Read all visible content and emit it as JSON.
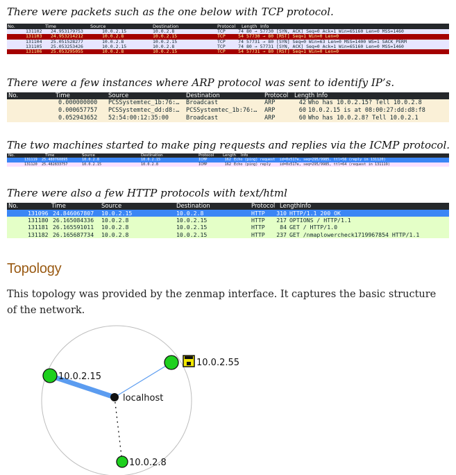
{
  "captions": {
    "tcp": "There were packets such as the one below with TCP protocol.",
    "arp": "There were a few instances where ARP protocol was sent to identify IP’s.",
    "icmp": "The two machines started to make ping requests and replies via the ICMP protocol.",
    "http": "There were also a few HTTP protocols with text/html"
  },
  "tcp_table": {
    "headers": [
      "No.",
      "Time",
      "Source",
      "Destination",
      "Protocol",
      "Length",
      "Info"
    ],
    "rows": [
      {
        "no": "131102",
        "time": "24.953179753",
        "src": "10.0.2.15",
        "dst": "10.0.2.8",
        "proto": "TCP",
        "len": "74",
        "info": "80 → 57730 [SYN, ACK] Seq=0 Ack=1 Win=65160 Len=0 MSS=1460",
        "style": "normal"
      },
      {
        "no": "131103",
        "time": "24.953214212",
        "src": "10.0.2.8",
        "dst": "10.0.2.15",
        "proto": "TCP",
        "len": "54",
        "info": "57730 → 80 [RST] Seq=1 Win=0 Len=0",
        "style": "rst"
      },
      {
        "no": "131104",
        "time": "25.051528277",
        "src": "10.0.2.8",
        "dst": "10.0.2.15",
        "proto": "TCP",
        "len": "74",
        "info": "57731 → 80 [SYN] Seq=0 Win=63 Len=0 MSS=1400 WS=1 SACK_PERM",
        "style": "normal"
      },
      {
        "no": "131105",
        "time": "25.053253426",
        "src": "10.0.2.15",
        "dst": "10.0.2.8",
        "proto": "TCP",
        "len": "74",
        "info": "80 → 57731 [SYN, ACK] Seq=0 Ack=1 Win=65160 Len=0 MSS=1460",
        "style": "normal"
      },
      {
        "no": "131106",
        "time": "25.053295055",
        "src": "10.0.2.8",
        "dst": "10.0.2.15",
        "proto": "TCP",
        "len": "54",
        "info": "57731 → 80 [RST] Seq=1 Win=0 Len=0",
        "style": "rst"
      }
    ]
  },
  "arp_table": {
    "headers": [
      "No.",
      "Time",
      "Source",
      "Destination",
      "Protocol",
      "Length",
      "Info"
    ],
    "rows": [
      {
        "no": "1",
        "time": "0.000000000",
        "src": "PCSSystemtec_1b:76:…",
        "dst": "Broadcast",
        "proto": "ARP",
        "len": "42",
        "info": "Who has 10.0.2.15? Tell 10.0.2.8"
      },
      {
        "no": "2",
        "time": "0.000657757",
        "src": "PCSSystemtec_dd:d8:…",
        "dst": "PCSSystemtec_1b:76:…",
        "proto": "ARP",
        "len": "60",
        "info": "10.0.2.15 is at 08:00:27:dd:d8:f8"
      },
      {
        "no": "4",
        "time": "0.052943652",
        "src": "52:54:00:12:35:00",
        "dst": "Broadcast",
        "proto": "ARP",
        "len": "60",
        "info": "Who has 10.0.2.8? Tell 10.0.2.1"
      }
    ]
  },
  "icmp_table": {
    "headers": [
      "No.",
      "Time",
      "Source",
      "Destination",
      "Protocol",
      "Length",
      "Info"
    ],
    "rows": [
      {
        "no": "131119",
        "time": "25.480760895",
        "src": "10.0.2.8",
        "dst": "10.0.2.15",
        "proto": "ICMP",
        "len": "162",
        "info": "Echo (ping) request  id=0x517e, seq=295/9985, ttl=56 (reply in 131120)",
        "style": "selected"
      },
      {
        "no": "131120",
        "time": "25.482833757",
        "src": "10.0.2.15",
        "dst": "10.0.2.8",
        "proto": "ICMP",
        "len": "162",
        "info": "Echo (ping) reply    id=0x517e, seq=295/9985, ttl=64 (request in 131119)",
        "style": "icmp"
      }
    ]
  },
  "http_table": {
    "headers": [
      "No.",
      "Time",
      "Source",
      "Destination",
      "Protocol",
      "Length",
      "Info"
    ],
    "rows": [
      {
        "no": "131096",
        "time": "24.846067807",
        "src": "10.0.2.15",
        "dst": "10.0.2.8",
        "proto": "HTTP",
        "len": "310",
        "info": "HTTP/1.1 200 OK",
        "style": "selected"
      },
      {
        "no": "131180",
        "time": "26.165084336",
        "src": "10.0.2.8",
        "dst": "10.0.2.15",
        "proto": "HTTP",
        "len": "217",
        "info": "OPTIONS / HTTP/1.1",
        "style": "http"
      },
      {
        "no": "131181",
        "time": "26.165591011",
        "src": "10.0.2.8",
        "dst": "10.0.2.15",
        "proto": "HTTP",
        "len": "84",
        "info": "GET / HTTP/1.0",
        "style": "http"
      },
      {
        "no": "131182",
        "time": "26.165687734",
        "src": "10.0.2.8",
        "dst": "10.0.2.15",
        "proto": "HTTP",
        "len": "237",
        "info": "GET /nmaplowercheck1719967854 HTTP/1.1",
        "style": "http"
      }
    ]
  },
  "topology": {
    "title": "Topology",
    "text": "This topology was provided by the zenmap interface. It captures the basic structure of the network.",
    "nodes": {
      "n1": "10.0.2.15",
      "n2": "10.0.2.55",
      "center": "localhost",
      "n3": "10.0.2.8"
    }
  },
  "colors": {
    "header_bg": "#25282b",
    "tcp_normal": "#e7e6ff",
    "tcp_rst": "#a40000",
    "arp": "#faf0d7",
    "icmp": "#fce0ff",
    "selected": "#3b86f5",
    "http": "#e4ffc7",
    "node_green": "#1ed01e",
    "section_title": "#9a5b14"
  }
}
